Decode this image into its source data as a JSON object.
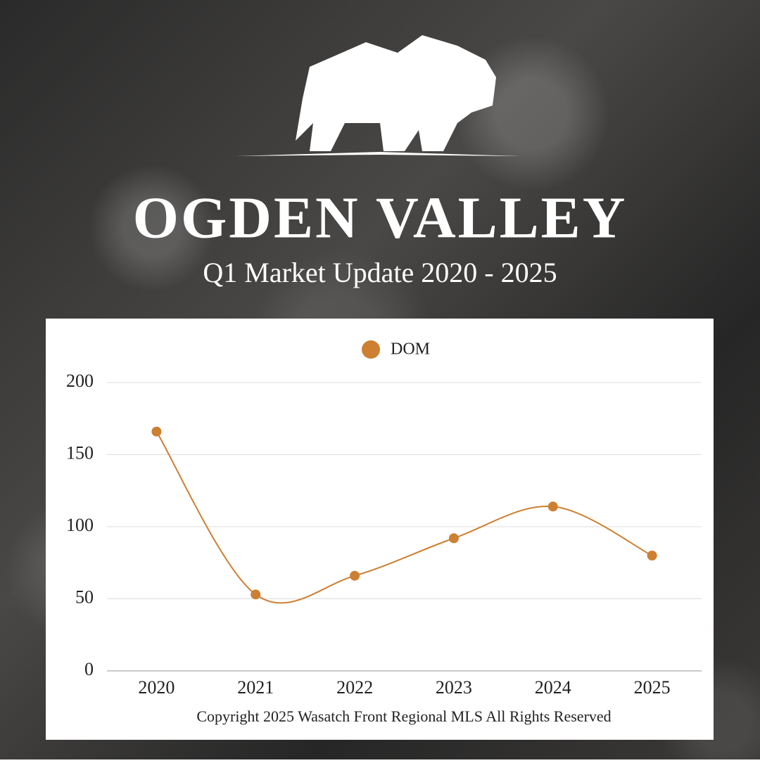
{
  "chart_data": {
    "type": "line",
    "title": "OGDEN VALLEY",
    "subtitle": "Q1 Market Update 2020 - 2025",
    "categories": [
      "2020",
      "2021",
      "2022",
      "2023",
      "2024",
      "2025"
    ],
    "series": [
      {
        "name": "DOM",
        "color": "#cd7f32",
        "values": [
          166,
          53,
          66,
          92,
          114,
          80
        ]
      }
    ],
    "ylim": [
      0,
      200
    ],
    "yticks": [
      0,
      50,
      100,
      150,
      200
    ],
    "grid": true,
    "smooth": true,
    "legend": "top",
    "note": "Copyright 2025 Wasatch Front Regional MLS All Rights Reserved"
  }
}
